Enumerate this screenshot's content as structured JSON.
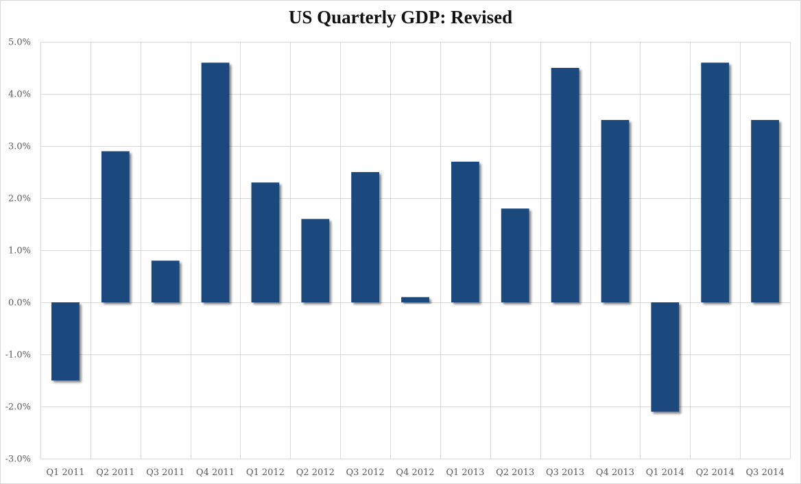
{
  "chart_data": {
    "type": "bar",
    "title": "US Quarterly GDP: Revised",
    "xlabel": "",
    "ylabel": "",
    "categories": [
      "Q1 2011",
      "Q2 2011",
      "Q3 2011",
      "Q4 2011",
      "Q1 2012",
      "Q2 2012",
      "Q3 2012",
      "Q4 2012",
      "Q1 2013",
      "Q2 2013",
      "Q3 2013",
      "Q4 2013",
      "Q1 2014",
      "Q2 2014",
      "Q3 2014"
    ],
    "values": [
      -1.5,
      2.9,
      0.8,
      4.6,
      2.3,
      1.6,
      2.5,
      0.1,
      2.7,
      1.8,
      4.5,
      3.5,
      -2.1,
      4.6,
      3.5
    ],
    "ylim": [
      -3.0,
      5.0
    ],
    "yticks": [
      5.0,
      4.0,
      3.0,
      2.0,
      1.0,
      0.0,
      -1.0,
      -2.0,
      -3.0
    ],
    "ytick_labels": [
      "5.0%",
      "4.0%",
      "3.0%",
      "2.0%",
      "1.0%",
      "0.0%",
      "-1.0%",
      "-2.0%",
      "-3.0%"
    ],
    "grid": true,
    "legend": "none",
    "colors": {
      "bar": "#1f497d",
      "grid": "#d9d9d9",
      "tick_text": "#595959"
    }
  }
}
